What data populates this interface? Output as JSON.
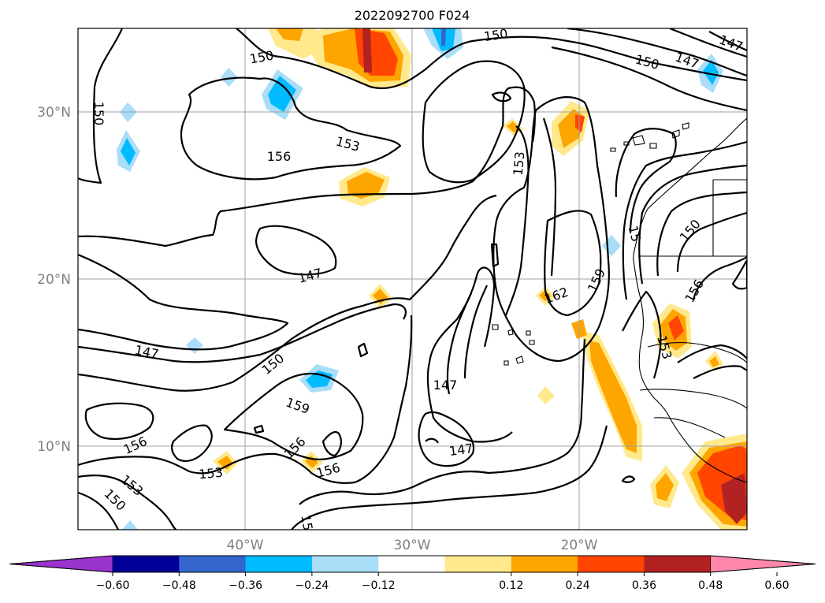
{
  "title": "2022092700 F024",
  "map": {
    "lat_range": [
      5,
      35
    ],
    "lon_range": [
      -50,
      -10
    ],
    "lat_ticks": [
      {
        "value": 30,
        "label": "30°N"
      },
      {
        "value": 20,
        "label": "20°N"
      },
      {
        "value": 10,
        "label": "10°N"
      }
    ],
    "lon_ticks": [
      {
        "value": -40,
        "label": "40°W"
      },
      {
        "value": -30,
        "label": "30°W"
      },
      {
        "value": -20,
        "label": "20°W"
      }
    ],
    "contour_labels": [
      "150",
      "150",
      "150",
      "150",
      "147",
      "147",
      "156",
      "153",
      "153",
      "147",
      "147",
      "150",
      "159",
      "147",
      "147",
      "162",
      "159",
      "15",
      "150",
      "156",
      "153",
      "156",
      "153",
      "153",
      "150",
      "156",
      "156",
      "15"
    ]
  },
  "colorbar": {
    "colors": [
      "#9933cc",
      "#000099",
      "#3366cc",
      "#00bbff",
      "#aaddf7",
      "#ffffff",
      "#ffe98c",
      "#ffa500",
      "#ff4500",
      "#b22222",
      "#ff88aa"
    ],
    "ticks": [
      "−0.60",
      "−0.48",
      "−0.36",
      "−0.24",
      "−0.12",
      "0.12",
      "0.24",
      "0.36",
      "0.48",
      "0.60"
    ]
  }
}
